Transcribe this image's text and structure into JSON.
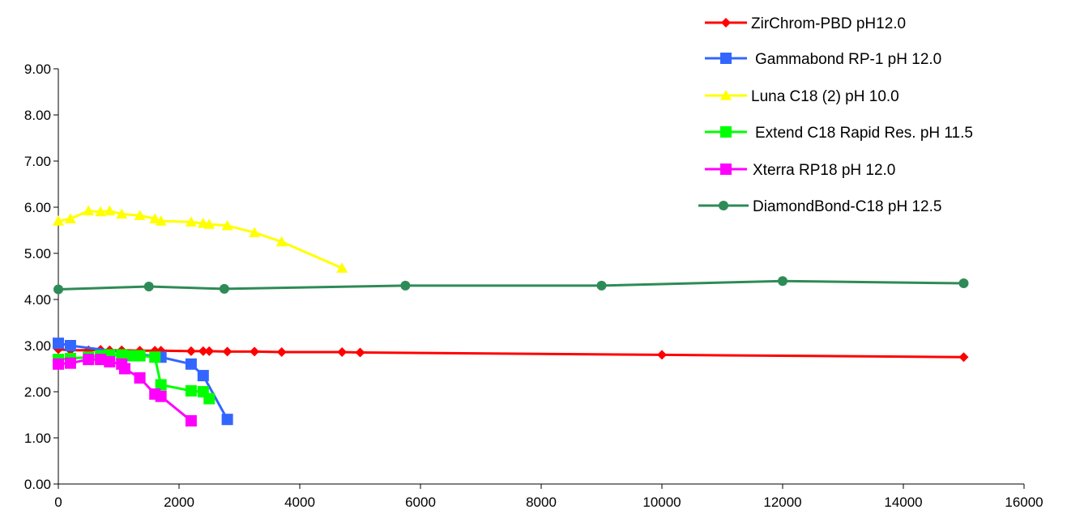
{
  "chart_data": {
    "type": "line",
    "title": "",
    "xlabel": "",
    "ylabel": "",
    "xlim": [
      0,
      16000
    ],
    "ylim": [
      0,
      9
    ],
    "x_ticks": [
      "0",
      "2000",
      "4000",
      "6000",
      "8000",
      "10000",
      "12000",
      "14000",
      "16000"
    ],
    "y_ticks": [
      "0.00",
      "1.00",
      "2.00",
      "3.00",
      "4.00",
      "5.00",
      "6.00",
      "7.00",
      "8.00",
      "9.00"
    ],
    "grid": false,
    "legend_position": "top-right",
    "series": [
      {
        "name": "ZirChrom-PBD pH12.0",
        "color": "#ff0000",
        "marker": "diamond",
        "x": [
          0,
          200,
          500,
          700,
          850,
          1050,
          1350,
          1600,
          1700,
          2200,
          2400,
          2500,
          2800,
          3250,
          3700,
          4700,
          5000,
          10000,
          15000
        ],
        "y": [
          2.92,
          2.9,
          2.9,
          2.91,
          2.9,
          2.9,
          2.89,
          2.89,
          2.89,
          2.88,
          2.88,
          2.88,
          2.87,
          2.87,
          2.86,
          2.86,
          2.85,
          2.8,
          2.75
        ]
      },
      {
        "name": "Gammabond RP-1 pH 12.0",
        "color": "#3366ff",
        "marker": "square",
        "x": [
          0,
          200,
          1700,
          2200,
          2400,
          2800
        ],
        "y": [
          3.05,
          3.0,
          2.75,
          2.6,
          2.35,
          1.4
        ]
      },
      {
        "name": "Luna C18 (2) pH 10.0",
        "color": "#ffff00",
        "marker": "triangle",
        "x": [
          0,
          200,
          500,
          700,
          850,
          1050,
          1350,
          1600,
          1700,
          2200,
          2400,
          2500,
          2800,
          3250,
          3700,
          4700
        ],
        "y": [
          5.7,
          5.75,
          5.92,
          5.9,
          5.92,
          5.85,
          5.82,
          5.75,
          5.7,
          5.68,
          5.65,
          5.63,
          5.6,
          5.45,
          5.25,
          4.68
        ]
      },
      {
        "name": "Extend C18 Rapid Res. pH 11.5",
        "color": "#00ff00",
        "marker": "square",
        "x": [
          0,
          200,
          500,
          700,
          850,
          1050,
          1200,
          1350,
          1600,
          1700,
          2200,
          2400,
          2500
        ],
        "y": [
          2.7,
          2.72,
          2.75,
          2.78,
          2.8,
          2.8,
          2.78,
          2.78,
          2.75,
          2.15,
          2.02,
          2.0,
          1.85
        ]
      },
      {
        "name": "Xterra RP18 pH 12.0",
        "color": "#ff00ff",
        "marker": "square",
        "x": [
          0,
          200,
          500,
          700,
          850,
          1050,
          1100,
          1350,
          1600,
          1700,
          2200
        ],
        "y": [
          2.6,
          2.62,
          2.7,
          2.7,
          2.65,
          2.6,
          2.5,
          2.3,
          1.95,
          1.9,
          1.37
        ]
      },
      {
        "name": "DiamondBond-C18 pH 12.5",
        "color": "#2e8b57",
        "marker": "circle",
        "x": [
          0,
          1500,
          2750,
          5750,
          9000,
          12000,
          15000
        ],
        "y": [
          4.22,
          4.28,
          4.23,
          4.3,
          4.3,
          4.4,
          4.35
        ]
      }
    ]
  }
}
